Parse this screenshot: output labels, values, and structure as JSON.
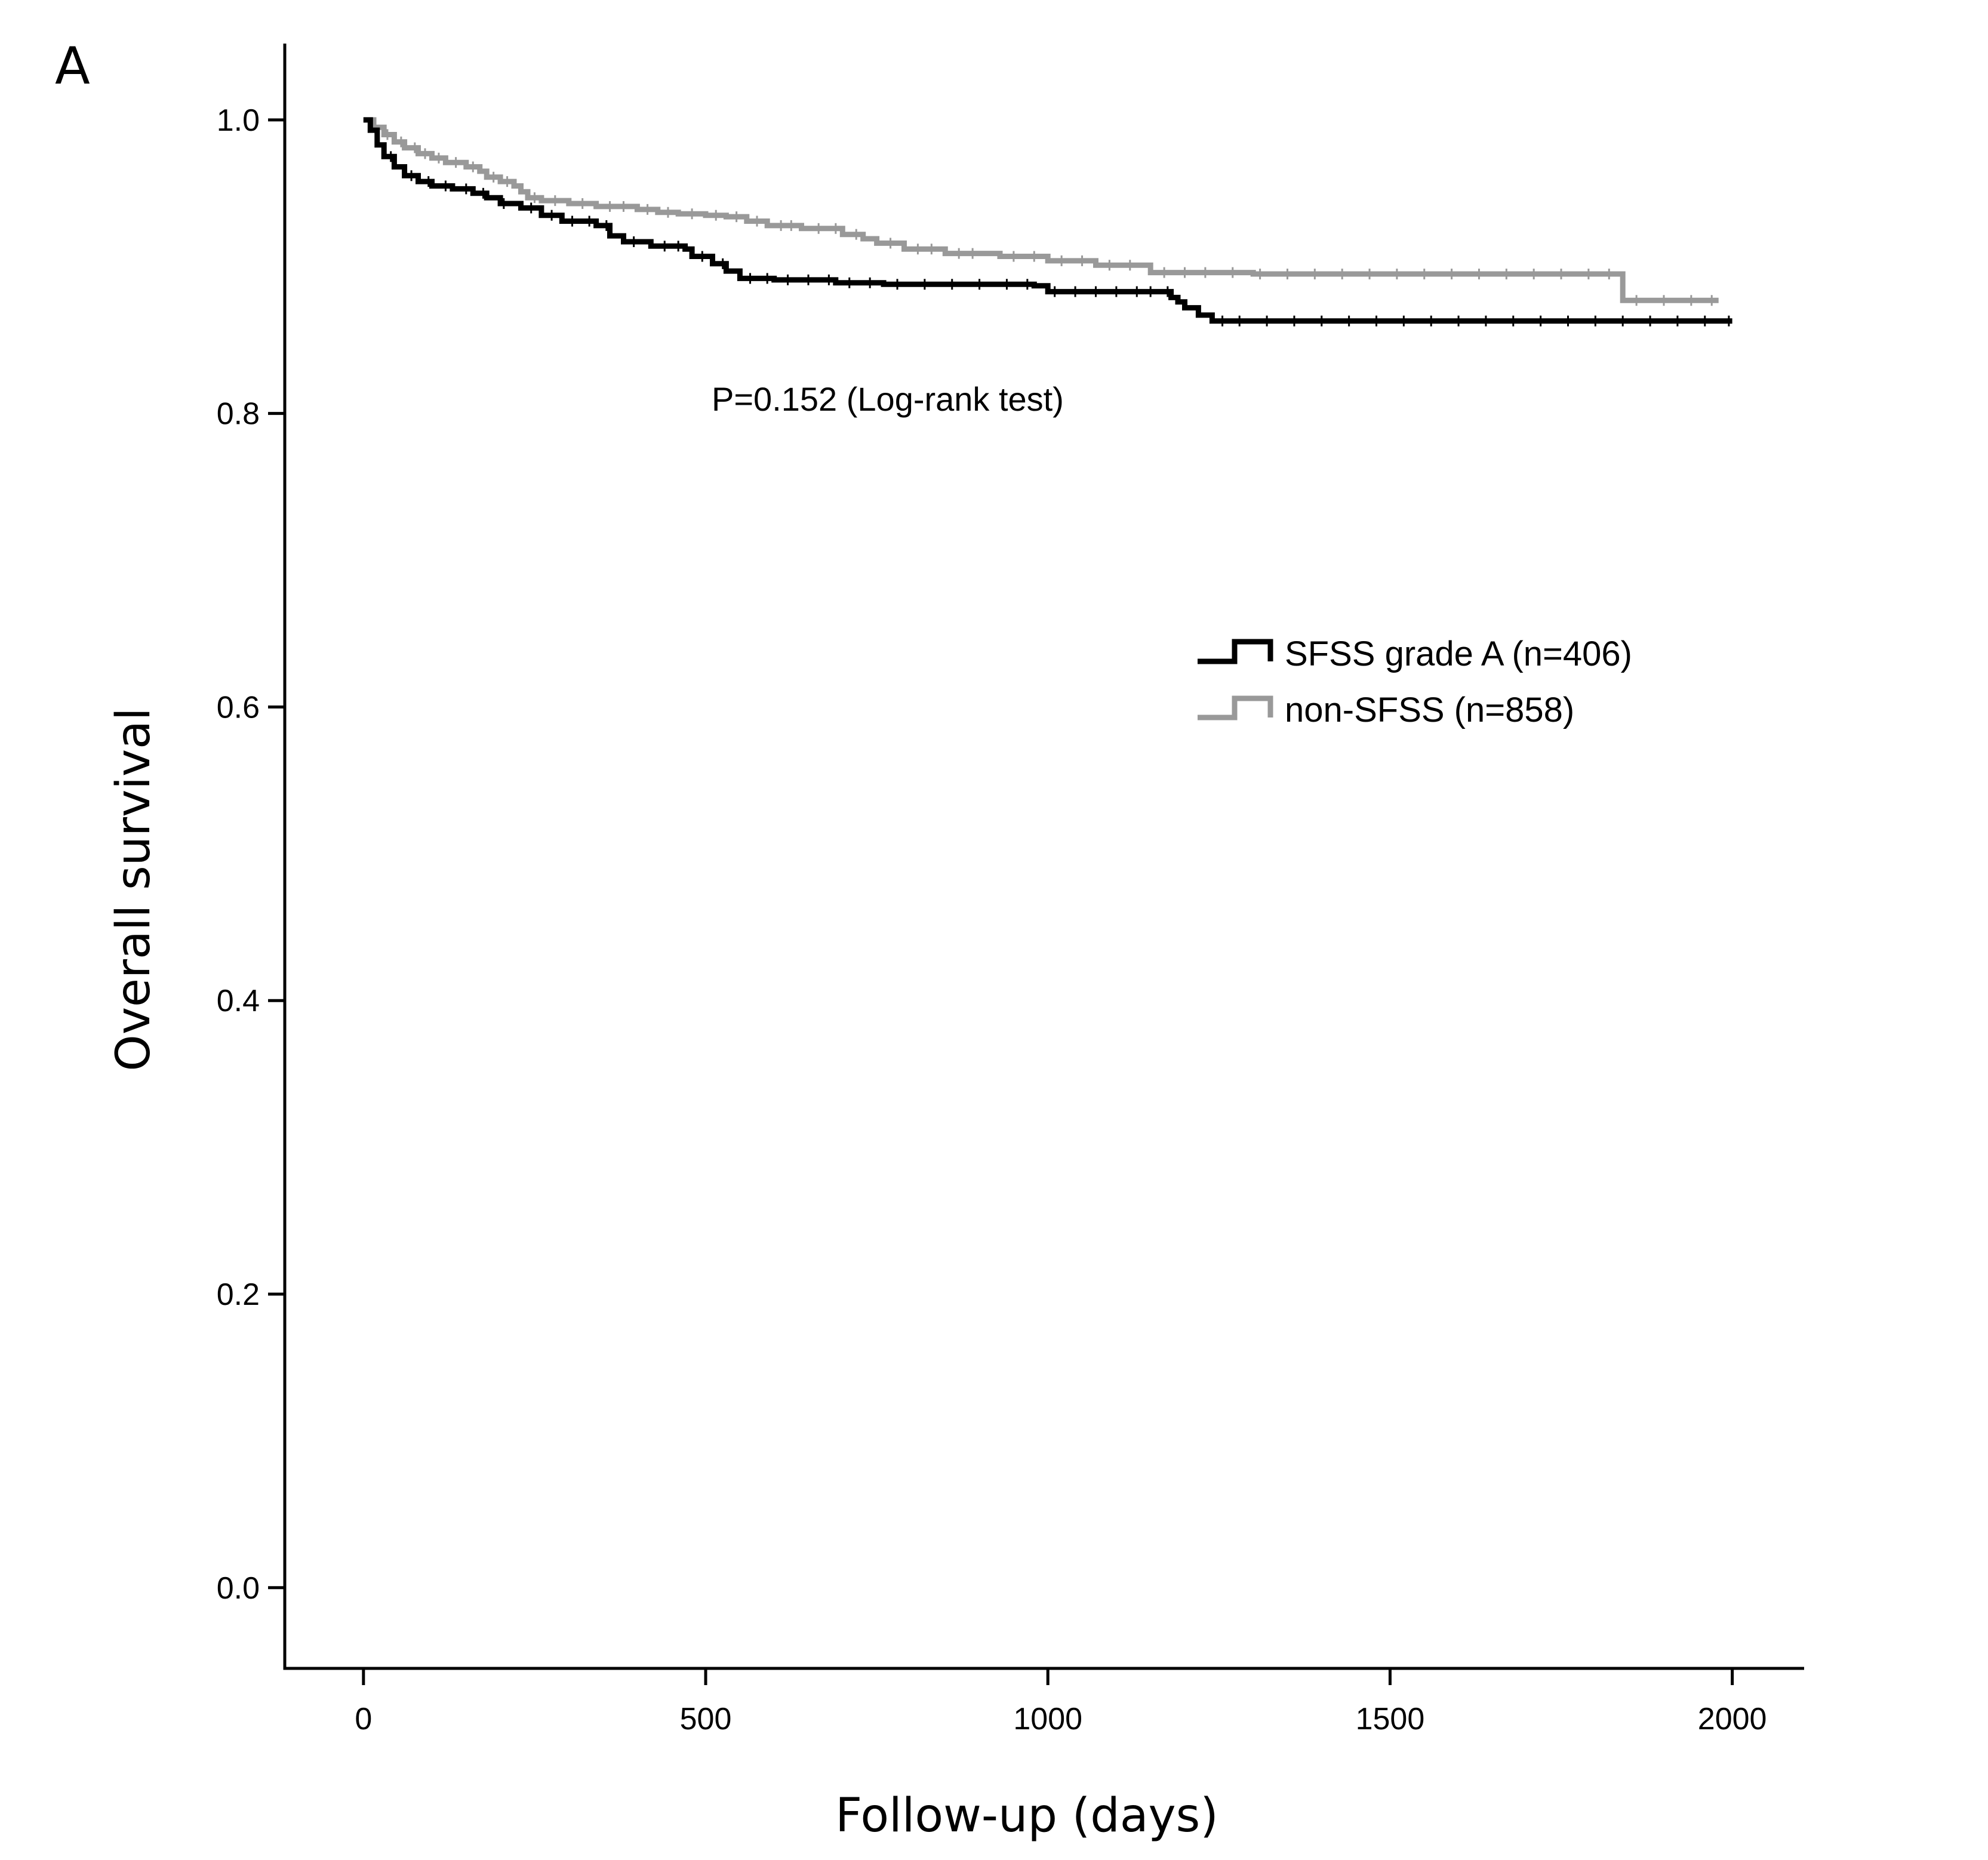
{
  "panel_label": "A",
  "chart_data": {
    "type": "line",
    "subtype": "kaplan-meier",
    "xlabel": "Follow-up (days)",
    "ylabel": "Overall survival",
    "xlim": [
      -115,
      2105
    ],
    "ylim": [
      -0.055,
      1.052
    ],
    "x_ticks": [
      0,
      500,
      1000,
      1500,
      2000
    ],
    "x_tick_labels": [
      "0",
      "500",
      "1000",
      "1500",
      "2000"
    ],
    "y_ticks": [
      0.0,
      0.2,
      0.4,
      0.6,
      0.8,
      1.0
    ],
    "y_tick_labels": [
      "0.0",
      "0.2",
      "0.4",
      "0.6",
      "0.8",
      "1.0"
    ],
    "annotation": "P=0.152 (Log-rank test)",
    "legend_position": "right",
    "series": [
      {
        "name": "SFSS grade A (n=406)",
        "color": "#000000",
        "steps": [
          [
            0,
            1.0
          ],
          [
            10,
            0.993
          ],
          [
            20,
            0.983
          ],
          [
            30,
            0.975
          ],
          [
            45,
            0.968
          ],
          [
            60,
            0.962
          ],
          [
            80,
            0.958
          ],
          [
            100,
            0.955
          ],
          [
            130,
            0.953
          ],
          [
            160,
            0.95
          ],
          [
            180,
            0.947
          ],
          [
            200,
            0.943
          ],
          [
            230,
            0.94
          ],
          [
            260,
            0.935
          ],
          [
            290,
            0.931
          ],
          [
            340,
            0.928
          ],
          [
            360,
            0.921
          ],
          [
            380,
            0.917
          ],
          [
            420,
            0.914
          ],
          [
            470,
            0.912
          ],
          [
            480,
            0.907
          ],
          [
            510,
            0.902
          ],
          [
            530,
            0.897
          ],
          [
            550,
            0.892
          ],
          [
            600,
            0.891
          ],
          [
            690,
            0.889
          ],
          [
            760,
            0.888
          ],
          [
            850,
            0.888
          ],
          [
            980,
            0.887
          ],
          [
            1000,
            0.883
          ],
          [
            1160,
            0.883
          ],
          [
            1180,
            0.879
          ],
          [
            1190,
            0.876
          ],
          [
            1200,
            0.872
          ],
          [
            1220,
            0.867
          ],
          [
            1240,
            0.863
          ],
          [
            1300,
            0.863
          ],
          [
            1600,
            0.863
          ],
          [
            2000,
            0.863
          ]
        ],
        "censor_times": [
          40,
          70,
          95,
          120,
          150,
          175,
          205,
          245,
          275,
          305,
          330,
          355,
          395,
          440,
          460,
          495,
          525,
          565,
          590,
          620,
          650,
          680,
          710,
          740,
          780,
          820,
          860,
          900,
          940,
          970,
          1010,
          1040,
          1070,
          1100,
          1130,
          1150,
          1175,
          1255,
          1280,
          1320,
          1360,
          1400,
          1440,
          1480,
          1520,
          1560,
          1600,
          1640,
          1680,
          1720,
          1760,
          1800,
          1840,
          1880,
          1920,
          1960,
          1995
        ]
      },
      {
        "name": "non-SFSS (n=858)",
        "color": "#999999",
        "steps": [
          [
            0,
            1.0
          ],
          [
            15,
            0.995
          ],
          [
            30,
            0.99
          ],
          [
            45,
            0.985
          ],
          [
            60,
            0.981
          ],
          [
            80,
            0.977
          ],
          [
            100,
            0.974
          ],
          [
            120,
            0.971
          ],
          [
            150,
            0.968
          ],
          [
            170,
            0.965
          ],
          [
            180,
            0.961
          ],
          [
            200,
            0.958
          ],
          [
            220,
            0.955
          ],
          [
            230,
            0.951
          ],
          [
            240,
            0.947
          ],
          [
            260,
            0.945
          ],
          [
            300,
            0.943
          ],
          [
            340,
            0.941
          ],
          [
            400,
            0.939
          ],
          [
            430,
            0.937
          ],
          [
            460,
            0.936
          ],
          [
            500,
            0.935
          ],
          [
            530,
            0.934
          ],
          [
            560,
            0.931
          ],
          [
            590,
            0.928
          ],
          [
            640,
            0.926
          ],
          [
            700,
            0.922
          ],
          [
            730,
            0.919
          ],
          [
            750,
            0.916
          ],
          [
            790,
            0.912
          ],
          [
            850,
            0.909
          ],
          [
            930,
            0.907
          ],
          [
            1000,
            0.904
          ],
          [
            1070,
            0.901
          ],
          [
            1150,
            0.896
          ],
          [
            1300,
            0.895
          ],
          [
            1500,
            0.895
          ],
          [
            1830,
            0.895
          ],
          [
            1840,
            0.877
          ],
          [
            1980,
            0.877
          ]
        ],
        "censor_times": [
          35,
          55,
          75,
          90,
          110,
          135,
          160,
          190,
          210,
          250,
          280,
          320,
          360,
          380,
          415,
          445,
          480,
          515,
          545,
          575,
          610,
          625,
          665,
          690,
          720,
          770,
          810,
          830,
          870,
          890,
          950,
          980,
          1020,
          1050,
          1090,
          1120,
          1170,
          1200,
          1230,
          1270,
          1310,
          1350,
          1390,
          1430,
          1470,
          1510,
          1550,
          1590,
          1630,
          1670,
          1710,
          1750,
          1790,
          1820,
          1860,
          1900,
          1940,
          1970
        ]
      }
    ]
  }
}
